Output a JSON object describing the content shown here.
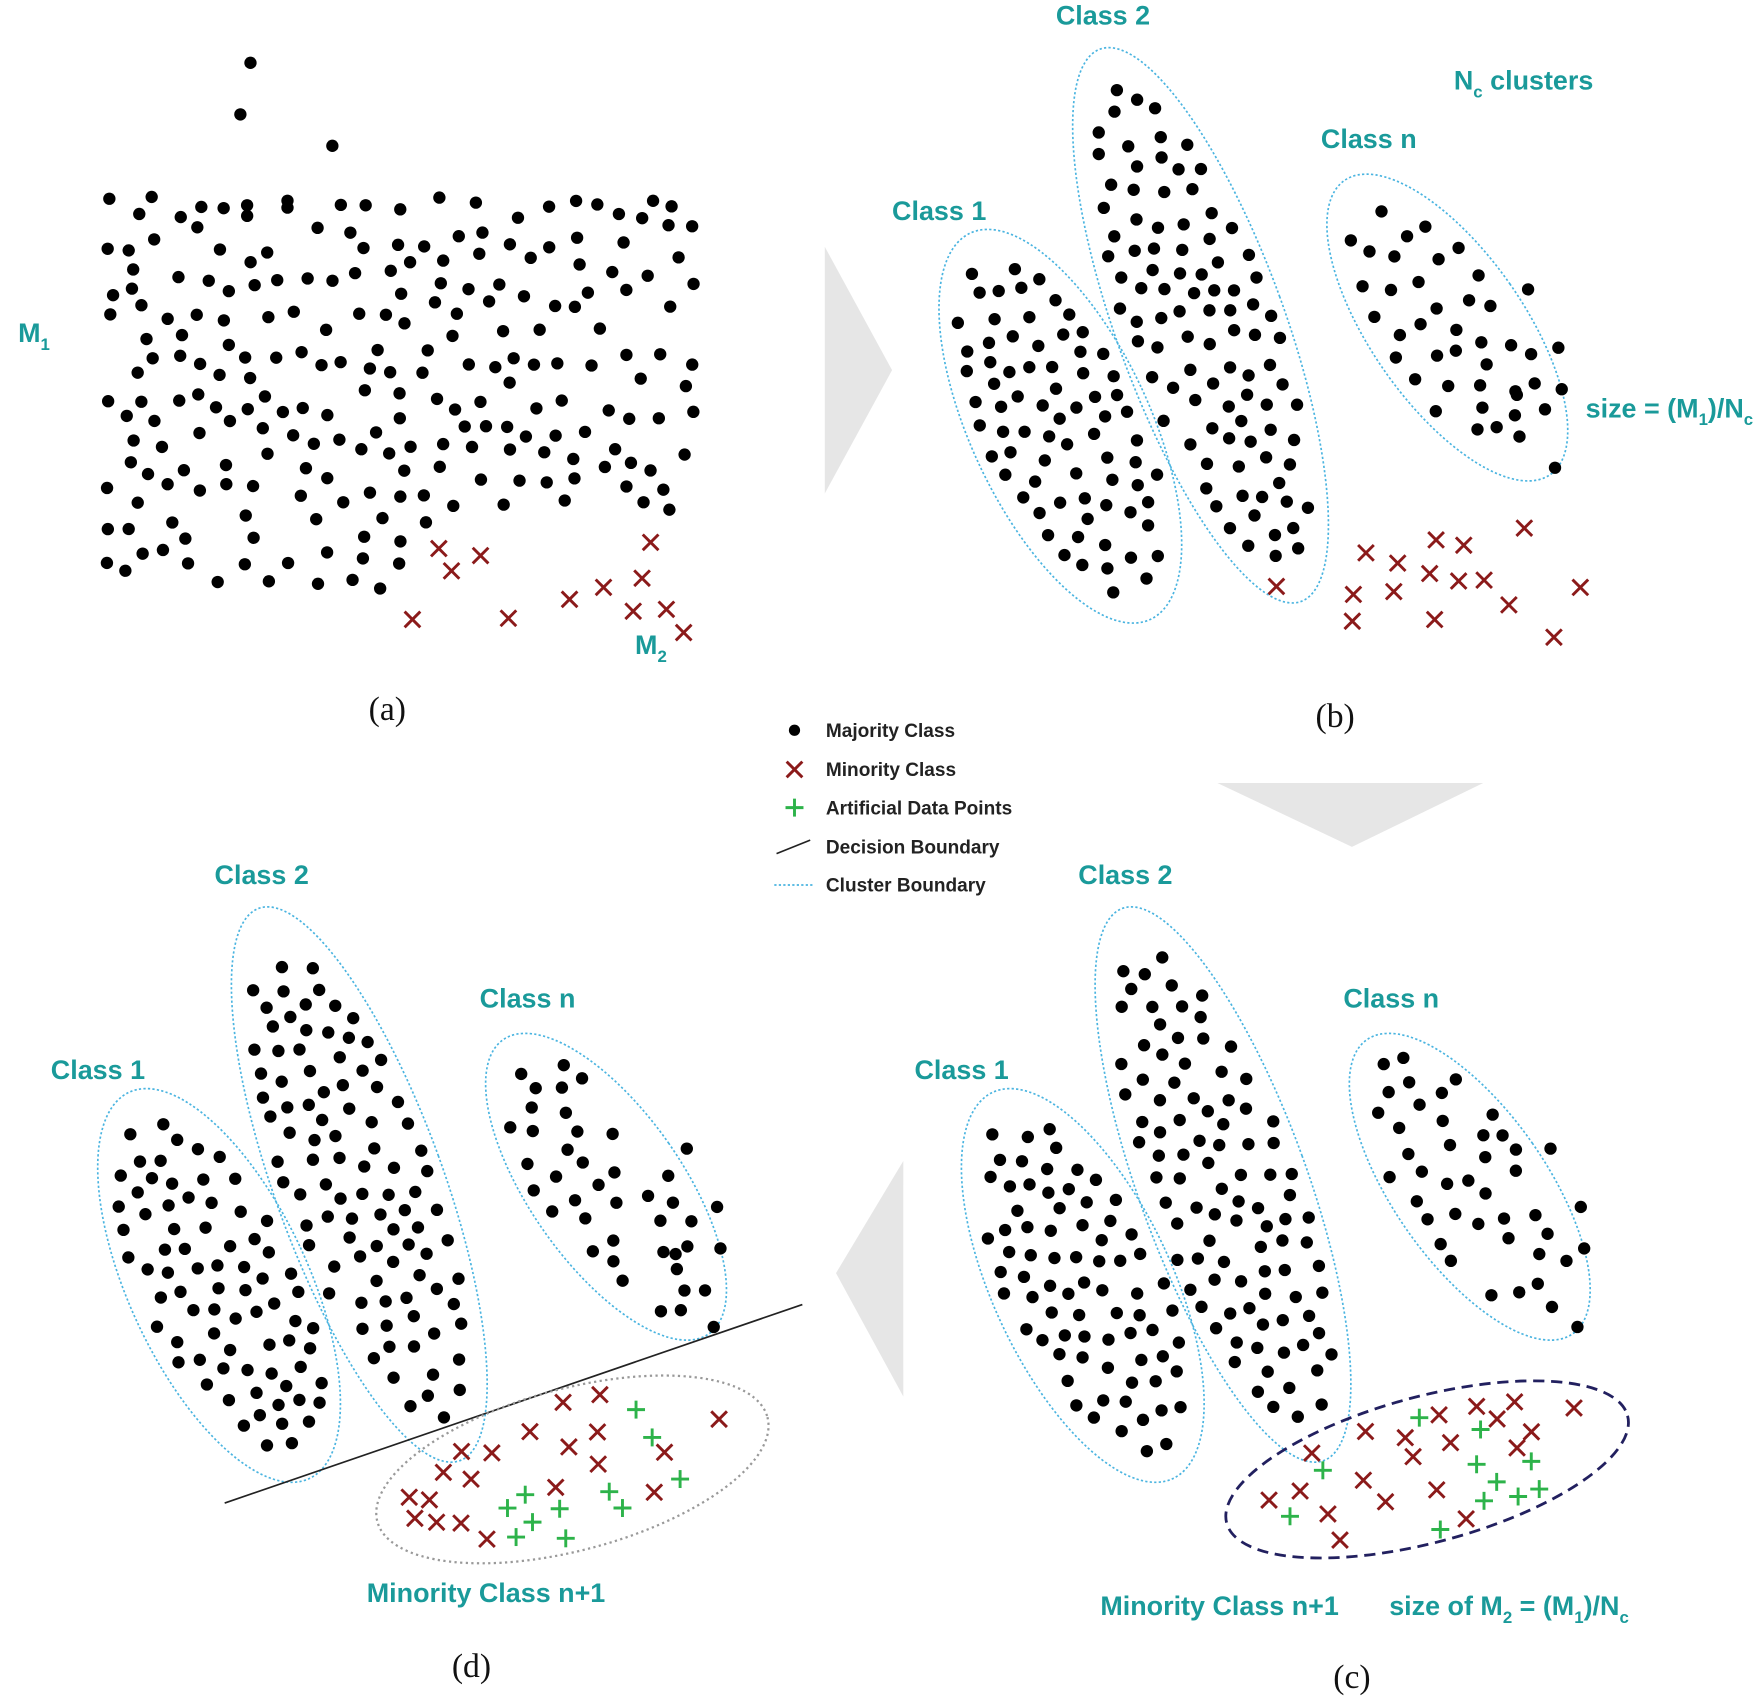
{
  "panel_a": {
    "caption": "(a)",
    "majority_label": [
      "M",
      "1"
    ],
    "minority_label": [
      "M",
      "2"
    ]
  },
  "panel_b": {
    "caption": "(b)",
    "clusters": [
      "Class 1",
      "Class 2",
      "Class n"
    ],
    "cluster_count": [
      "N",
      "c",
      " clusters"
    ],
    "size_note": [
      "size = (M",
      "1",
      ")/N",
      "c"
    ]
  },
  "panel_c": {
    "caption": "(c)",
    "clusters": [
      "Class 1",
      "Class 2",
      "Class n"
    ],
    "minority_cluster": "Minority Class n+1",
    "size_note": [
      "size of M",
      "2",
      " = (M",
      "1",
      ")/N",
      "c"
    ]
  },
  "panel_d": {
    "caption": "(d)",
    "clusters": [
      "Class 1",
      "Class 2",
      "Class n"
    ],
    "minority_cluster": "Minority Class n+1"
  },
  "legend": [
    "Majority Class",
    "Minority Class",
    "Artificial Data Points",
    "Decision Boundary",
    "Cluster Boundary"
  ]
}
